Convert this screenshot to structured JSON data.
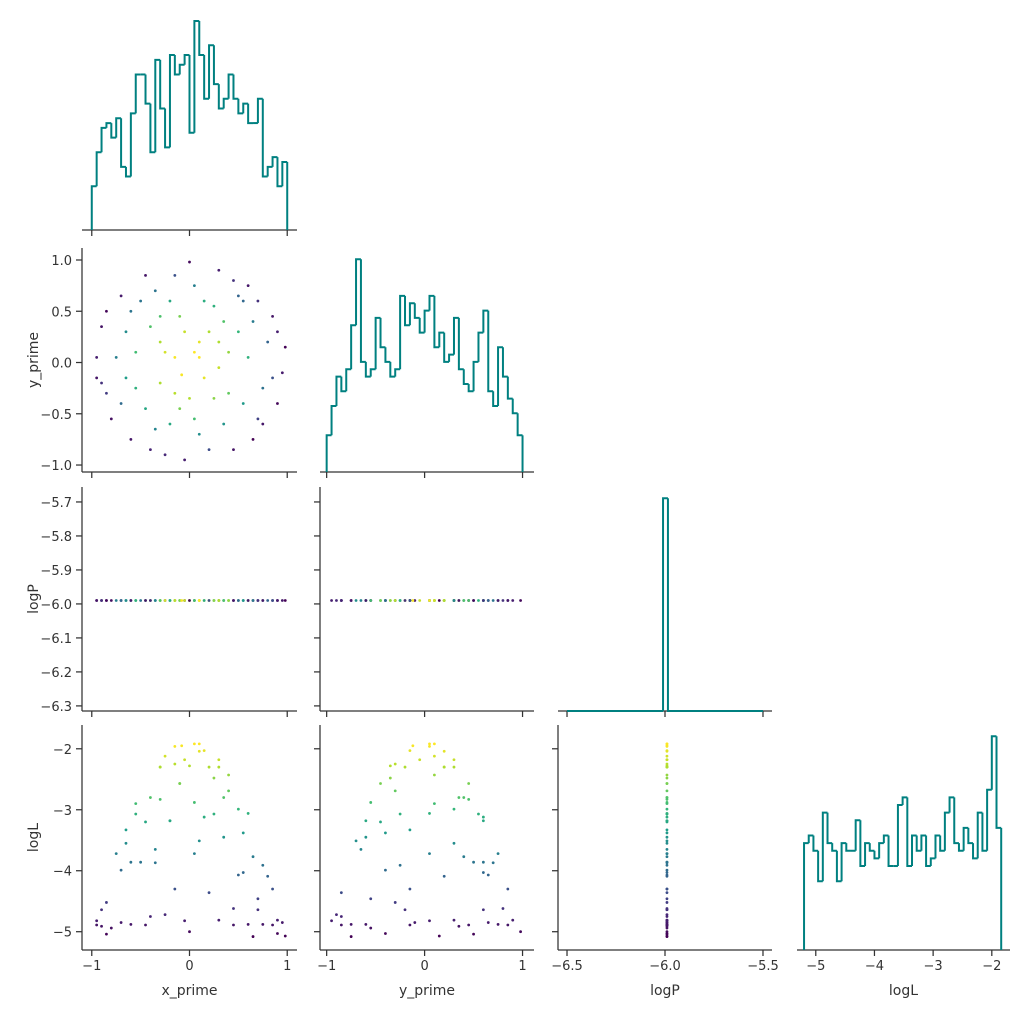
{
  "chart_data": {
    "type": "corner",
    "hist_color": "#008080",
    "colormap": "viridis",
    "color_by": "logL",
    "variables": [
      {
        "name": "x_prime",
        "lim": [
          -1.1,
          1.1
        ],
        "ticks": [
          {
            "value": -1,
            "label": "−1"
          },
          0,
          1
        ],
        "bins": [
          -1.0,
          -0.95,
          -0.9,
          -0.85,
          -0.8,
          -0.75,
          -0.7,
          -0.65,
          -0.6,
          -0.55,
          -0.5,
          -0.45,
          -0.4,
          -0.35,
          -0.3,
          -0.25,
          -0.2,
          -0.15,
          -0.1,
          -0.05,
          0.0,
          0.05,
          0.1,
          0.15,
          0.2,
          0.25,
          0.3,
          0.35,
          0.4,
          0.45,
          0.5,
          0.55,
          0.6,
          0.65,
          0.7,
          0.75,
          0.8,
          0.85,
          0.9,
          0.95,
          1.0
        ],
        "counts": [
          9,
          16,
          21,
          22,
          19,
          23,
          13,
          11,
          24,
          32,
          32,
          26,
          16,
          35,
          25,
          17,
          36,
          32,
          34,
          36,
          20,
          43,
          36,
          27,
          38,
          30,
          25,
          27,
          32,
          27,
          24,
          26,
          22,
          22,
          27,
          11,
          13,
          15,
          9,
          14
        ]
      },
      {
        "name": "y_prime",
        "lim": [
          -1.068,
          1.117
        ],
        "ticks": [
          {
            "value": -1,
            "label": "−1"
          },
          0,
          1
        ],
        "yticks": [
          {
            "value": -1.0,
            "label": "−1.0"
          },
          {
            "value": -0.5,
            "label": "−0.5"
          },
          {
            "value": 0.0,
            "label": "0.0"
          },
          {
            "value": 0.5,
            "label": "0.5"
          },
          {
            "value": 1.0,
            "label": "1.0"
          }
        ],
        "bins": [
          -1.0,
          -0.95,
          -0.9,
          -0.85,
          -0.8,
          -0.75,
          -0.7,
          -0.65,
          -0.6,
          -0.55,
          -0.5,
          -0.45,
          -0.4,
          -0.35,
          -0.3,
          -0.25,
          -0.2,
          -0.15,
          -0.1,
          -0.05,
          0.0,
          0.05,
          0.1,
          0.15,
          0.2,
          0.25,
          0.3,
          0.35,
          0.4,
          0.45,
          0.5,
          0.55,
          0.6,
          0.65,
          0.7,
          0.75,
          0.8,
          0.85,
          0.9,
          0.95,
          1.0
        ],
        "counts": [
          5,
          9,
          13,
          11,
          14,
          20,
          29,
          15,
          13,
          14,
          21,
          17,
          15,
          13,
          14,
          24,
          20,
          23,
          21,
          19,
          22,
          24,
          17,
          19,
          15,
          16,
          21,
          14,
          12,
          11,
          15,
          19,
          22,
          11,
          9,
          17,
          13,
          10,
          8,
          5
        ]
      },
      {
        "name": "logP",
        "lim": [
          -6.546,
          -5.454
        ],
        "ticks": [
          {
            "value": -6.5,
            "label": "−6.5"
          },
          {
            "value": -6.0,
            "label": "−6.0"
          },
          {
            "value": -5.5,
            "label": "−5.5"
          }
        ],
        "ylim": [
          -6.315,
          -5.656
        ],
        "yticks": [
          {
            "value": -6.3,
            "label": "−6.3"
          },
          {
            "value": -6.2,
            "label": "−6.2"
          },
          {
            "value": -6.1,
            "label": "−6.1"
          },
          {
            "value": -6.0,
            "label": "−6.0"
          },
          {
            "value": -5.9,
            "label": "−5.9"
          },
          {
            "value": -5.8,
            "label": "−5.8"
          },
          {
            "value": -5.7,
            "label": "−5.7"
          }
        ],
        "bins": [
          -6.5,
          -6.01,
          -5.985,
          -5.5
        ],
        "counts": [
          0,
          80,
          0
        ]
      },
      {
        "name": "logL",
        "lim": [
          -5.32,
          -1.69
        ],
        "ticks": [
          {
            "value": -5,
            "label": "−5"
          },
          {
            "value": -4,
            "label": "−4"
          },
          {
            "value": -3,
            "label": "−3"
          },
          {
            "value": -2,
            "label": "−2"
          }
        ],
        "ylim": [
          -5.3,
          -1.61
        ],
        "yticks": [
          {
            "value": -5,
            "label": "−5"
          },
          {
            "value": -4,
            "label": "−4"
          },
          {
            "value": -3,
            "label": "−3"
          },
          {
            "value": -2,
            "label": "−2"
          }
        ],
        "bins": [
          -5.2,
          -5.12,
          -5.04,
          -4.96,
          -4.88,
          -4.8,
          -4.72,
          -4.64,
          -4.56,
          -4.48,
          -4.4,
          -4.32,
          -4.24,
          -4.16,
          -4.08,
          -4.0,
          -3.92,
          -3.84,
          -3.76,
          -3.68,
          -3.6,
          -3.52,
          -3.44,
          -3.36,
          -3.28,
          -3.2,
          -3.12,
          -3.04,
          -2.96,
          -2.88,
          -2.8,
          -2.72,
          -2.64,
          -2.56,
          -2.48,
          -2.4,
          -2.32,
          -2.24,
          -2.16,
          -2.08,
          -2.0,
          -1.92,
          -1.84
        ],
        "counts": [
          14,
          15,
          13,
          9,
          18,
          14,
          13,
          9,
          14,
          13,
          13,
          17,
          11,
          14,
          13,
          12,
          14,
          15,
          11,
          11,
          19,
          20,
          11,
          15,
          13,
          15,
          11,
          12,
          15,
          13,
          18,
          20,
          14,
          13,
          16,
          14,
          12,
          18,
          13,
          21,
          28,
          16
        ]
      }
    ],
    "samples": [
      [
        0.05,
        -0.3,
        0.4,
        -0.6,
        0.8,
        -0.85,
        0.1,
        0.55,
        -0.15,
        0.95,
        -0.95,
        0.2,
        -0.45,
        0.7,
        -0.25,
        0.3,
        -0.7,
        0.0,
        0.6,
        -0.55,
        0.15,
        -0.1,
        0.35,
        -0.8,
        0.85,
        -0.35,
        0.5,
        -0.65,
        0.25,
        -0.2,
        0.75,
        -0.4,
        0.05,
        -0.05,
        0.45,
        -0.9,
        0.65,
        -0.6,
        0.9,
        -0.3,
        0.1,
        -0.15,
        0.3,
        -0.75,
        0.55,
        -0.5,
        0.2,
        -0.95,
        0.98,
        0.0,
        -0.05,
        0.4,
        -0.35,
        0.65,
        -0.85,
        0.15,
        -0.25,
        0.75,
        -0.45,
        0.25,
        -0.7,
        0.5,
        -0.1,
        0.35,
        -0.55,
        0.9,
        -0.2,
        0.05,
        0.7,
        -0.65,
        0.1,
        -0.08,
        0.45,
        -0.4,
        0.6,
        -0.9,
        0.3,
        -0.3,
        0.85,
        -0.15
      ],
      [
        0.1,
        0.2,
        -0.3,
        0.5,
        0.2,
        -0.3,
        -0.7,
        0.6,
        0.85,
        -0.1,
        0.05,
        0.3,
        -0.45,
        -0.55,
        -0.9,
        0.9,
        0.65,
        -0.35,
        0.05,
        0.1,
        -0.15,
        0.45,
        -0.6,
        -0.55,
        0.45,
        0.7,
        0.3,
        -0.15,
        0.55,
        -0.6,
        -0.25,
        0.35,
        0.75,
        -0.95,
        0.8,
        0.35,
        -0.75,
        -0.75,
        -0.4,
        -0.2,
        0.2,
        0.05,
        -0.05,
        0.05,
        -0.4,
        0.6,
        -0.85,
        -0.15,
        0.15,
        0.98,
        0.3,
        0.1,
        -0.65,
        0.4,
        0.5,
        0.6,
        0.1,
        -0.6,
        0.85,
        -0.35,
        -0.4,
        0.65,
        -0.45,
        0.4,
        -0.25,
        0.3,
        0.6,
        -0.55,
        0.6,
        0.3,
        0.05,
        -0.12,
        -0.85,
        -0.85,
        0.75,
        -0.2,
        0.2,
        0.45,
        -0.15,
        -0.3
      ],
      [
        -5.99,
        -5.99,
        -5.99,
        -5.99,
        -5.99,
        -5.99,
        -5.99,
        -5.99,
        -5.99,
        -5.99,
        -5.99,
        -5.99,
        -5.99,
        -5.99,
        -5.99,
        -5.99,
        -5.99,
        -5.99,
        -5.99,
        -5.99,
        -5.99,
        -5.99,
        -5.99,
        -5.99,
        -5.99,
        -5.99,
        -5.99,
        -5.99,
        -5.99,
        -5.99,
        -5.99,
        -5.99,
        -5.99,
        -5.99,
        -5.99,
        -5.99,
        -5.99,
        -5.99,
        -5.99,
        -5.99,
        -5.99,
        -5.99,
        -5.99,
        -5.99,
        -5.99,
        -5.99,
        -5.99,
        -5.99,
        -5.99,
        -5.99,
        -5.99,
        -5.99,
        -5.99,
        -5.99,
        -5.99,
        -5.99,
        -5.99,
        -5.99,
        -5.99,
        -5.99,
        -5.99,
        -5.99,
        -5.99,
        -5.99,
        -5.99,
        -5.99,
        -5.99,
        -5.99,
        -5.99,
        -5.99,
        -5.99,
        -5.99,
        -5.99,
        -5.99,
        -5.99,
        -5.99,
        -5.99,
        -5.99,
        -5.99,
        -5.99
      ],
      [
        -1.92,
        -2.3,
        -2.69,
        -3.86,
        -4.09,
        -4.52,
        -3.51,
        -4.03,
        -4.3,
        -4.85,
        -4.82,
        -2.3,
        -3.2,
        -4.46,
        -4.72,
        -4.81,
        -4.85,
        -2.28,
        -3.06,
        -2.9,
        -2.03,
        -2.57,
        -3.45,
        -4.94,
        -4.89,
        -3.87,
        -2.99,
        -3.33,
        -3.07,
        -3.18,
        -3.91,
        -2.8,
        -3.72,
        -4.82,
        -4.62,
        -4.91,
        -5.08,
        -4.88,
        -5.03,
        -2.3,
        -2.04,
        -1.96,
        -2.18,
        -3.72,
        -3.38,
        -3.86,
        -4.36,
        -4.89,
        -5.07,
        -5.0,
        -2.18,
        -2.43,
        -3.65,
        -3.77,
        -5.04,
        -3.12,
        -2.12,
        -4.88,
        -4.89,
        -2.48,
        -3.99,
        -4.07,
        -2.57,
        -2.8,
        -3.07,
        -4.81,
        -3.18,
        -2.88,
        -4.64,
        -3.55,
        -1.92,
        -1.95,
        -4.89,
        -4.75,
        -4.88,
        -4.64,
        -2.3,
        -2.83,
        -4.3,
        -2.25
      ]
    ]
  }
}
